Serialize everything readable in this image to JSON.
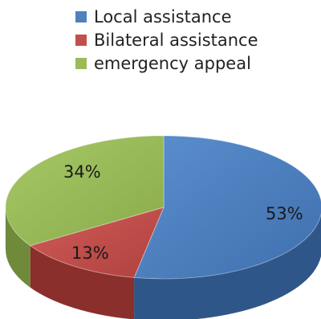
{
  "chart_data": {
    "type": "pie",
    "style": "3d",
    "title": "",
    "legend_position": "top",
    "categories": [
      "Local assistance",
      "Bilateral assistance",
      "emergency appeal"
    ],
    "values": [
      53,
      13,
      34
    ],
    "labels": [
      "53%",
      "13%",
      "34%"
    ],
    "colors": [
      "#4f81bd",
      "#c0504d",
      "#9bbb59"
    ]
  }
}
